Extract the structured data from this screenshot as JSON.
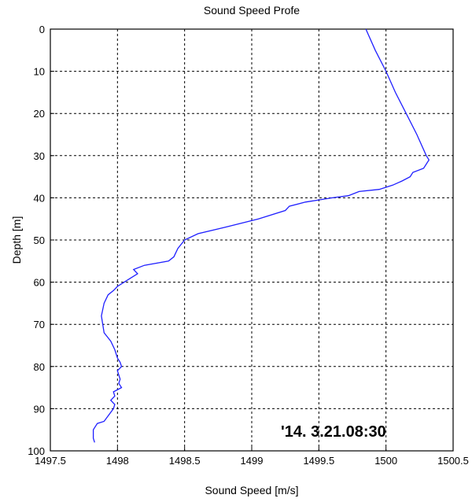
{
  "chart_data": {
    "type": "line",
    "title": "Sound Speed Profe",
    "xlabel": "Sound Speed  [m/s]",
    "ylabel": "Depth  [m]",
    "xlim": [
      1497.5,
      1500.5
    ],
    "ylim": [
      0,
      100
    ],
    "y_reversed": true,
    "grid": true,
    "grid_style": "dashed",
    "x_ticks": [
      "1497.5",
      "1498",
      "1498.5",
      "1499",
      "1499.5",
      "1500",
      "1500.5"
    ],
    "y_ticks": [
      "0",
      "10",
      "20",
      "30",
      "40",
      "50",
      "60",
      "70",
      "80",
      "90",
      "100"
    ],
    "line_color": "#1f1fff",
    "annotation": "'14. 3.21.08:30",
    "series": [
      {
        "x": [
          1499.85,
          1499.92,
          1500.0,
          1500.07,
          1500.15,
          1500.23,
          1500.3,
          1500.32,
          1500.28,
          1500.2,
          1500.18,
          1500.12,
          1500.05,
          1499.95,
          1499.8,
          1499.72,
          1499.6,
          1499.4,
          1499.28,
          1499.25,
          1499.05,
          1498.8,
          1498.6,
          1498.5,
          1498.45,
          1498.42,
          1498.38,
          1498.2,
          1498.12,
          1498.15,
          1498.1,
          1498.05,
          1498.0,
          1497.97,
          1497.93,
          1497.9,
          1497.88,
          1497.9,
          1497.95,
          1497.98,
          1498.0,
          1498.02,
          1498.03,
          1498.0,
          1498.02,
          1498.01,
          1498.03,
          1497.97,
          1497.98,
          1497.95,
          1497.98,
          1497.97,
          1497.9,
          1497.85,
          1497.82,
          1497.82,
          1497.83
        ],
        "y": [
          0,
          5,
          10,
          15,
          20,
          25,
          30,
          31,
          33,
          34,
          35,
          36,
          37,
          38,
          38.5,
          39.5,
          40,
          41,
          42,
          43,
          45,
          47,
          48.5,
          50,
          52,
          54,
          55,
          56,
          57,
          58,
          59,
          60,
          61,
          62,
          63,
          65,
          68,
          72,
          74,
          76,
          78,
          79,
          80,
          81,
          83,
          84,
          85,
          86,
          87,
          88,
          89,
          90,
          93,
          93.5,
          95,
          97,
          98
        ]
      }
    ]
  }
}
